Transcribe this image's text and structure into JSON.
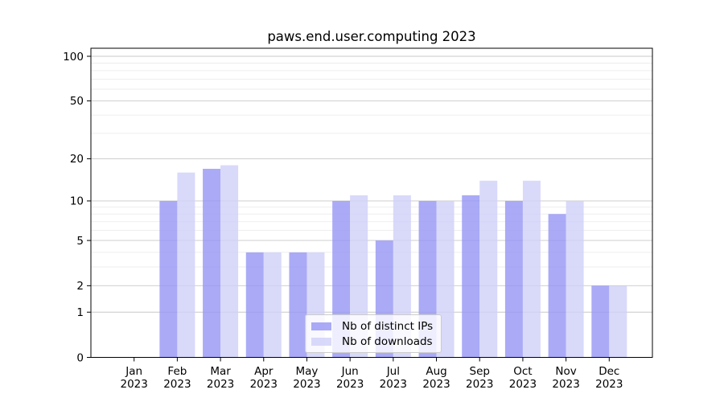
{
  "chart_data": {
    "type": "bar",
    "title": "paws.end.user.computing 2023",
    "xlabel": "",
    "ylabel": "",
    "categories": [
      "Jan",
      "Feb",
      "Mar",
      "Apr",
      "May",
      "Jun",
      "Jul",
      "Aug",
      "Sep",
      "Oct",
      "Nov",
      "Dec"
    ],
    "category_year": "2023",
    "series": [
      {
        "name": "Nb of distinct IPs",
        "color": "rgba(149,149,245,0.8)",
        "color_hex": "#aaaaf7",
        "values": [
          0,
          10,
          17,
          4,
          4,
          10,
          5,
          10,
          11,
          10,
          8,
          2
        ]
      },
      {
        "name": "Nb of downloads",
        "color": "rgba(208,208,249,0.8)",
        "color_hex": "#d8d8fa",
        "values": [
          0,
          16,
          18,
          4,
          4,
          11,
          11,
          10,
          14,
          14,
          10,
          2
        ]
      }
    ],
    "y_axis": {
      "scale": "log10(1+v)",
      "major_ticks": [
        0,
        1,
        2,
        5,
        10,
        20,
        50,
        100
      ],
      "minor_gridlines": [
        3,
        4,
        6,
        7,
        8,
        9,
        30,
        40,
        60,
        70,
        80,
        90
      ],
      "ylim": [
        0,
        113
      ]
    },
    "legend_position": "lower center",
    "grid": true,
    "style": {
      "major_grid_color": "#c8c8c8",
      "minor_grid_color": "#e9e9e9",
      "spine_color": "#000000"
    }
  }
}
